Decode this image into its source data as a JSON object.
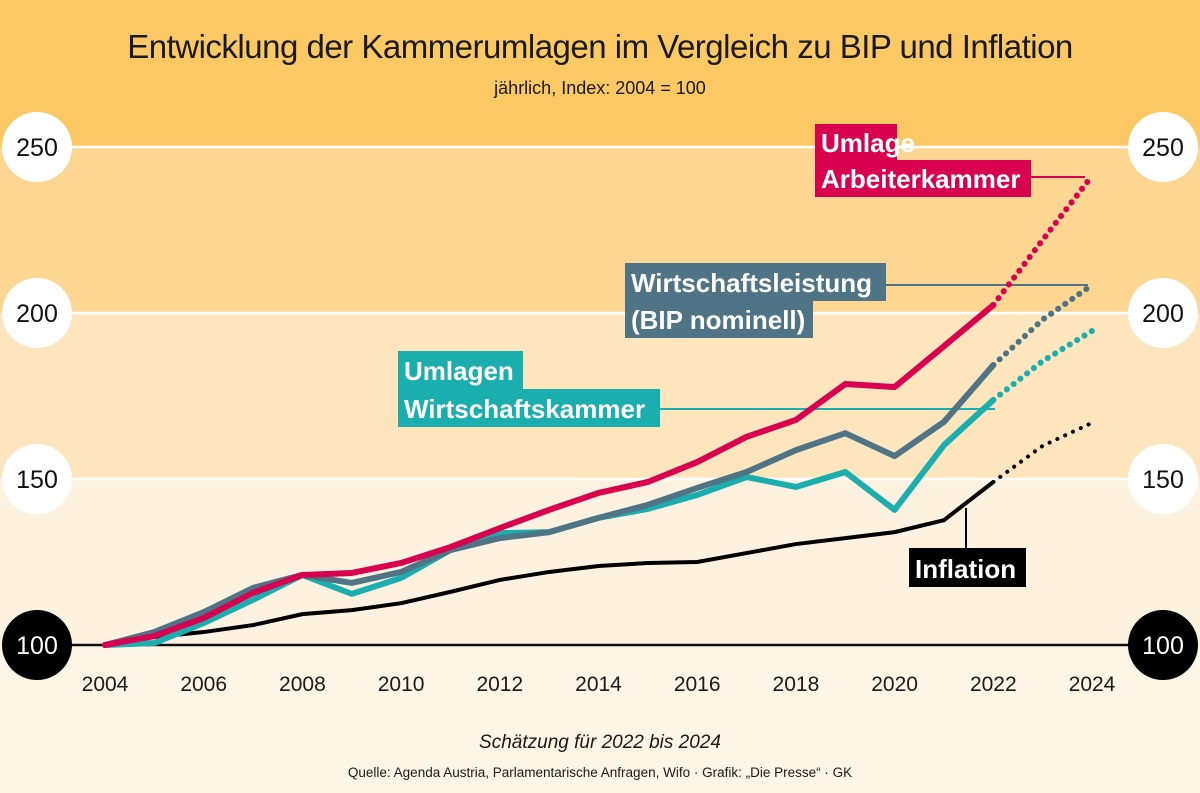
{
  "chart_data": {
    "type": "line",
    "title": "Entwicklung der Kammerumlagen im Vergleich zu BIP und Inflation",
    "subtitle": "jährlich, Index: 2004 = 100",
    "xlabel": "",
    "ylabel": "",
    "x": [
      2004,
      2005,
      2006,
      2007,
      2008,
      2009,
      2010,
      2011,
      2012,
      2013,
      2014,
      2015,
      2016,
      2017,
      2018,
      2019,
      2020,
      2021,
      2022,
      2023,
      2024
    ],
    "x_ticks": [
      "2004",
      "2006",
      "2008",
      "2010",
      "2012",
      "2014",
      "2016",
      "2018",
      "2020",
      "2022",
      "2024"
    ],
    "x_tick_values": [
      2004,
      2006,
      2008,
      2010,
      2012,
      2014,
      2016,
      2018,
      2020,
      2022,
      2024
    ],
    "y_ticks": [
      "100",
      "150",
      "200",
      "250"
    ],
    "y_tick_values": [
      100,
      150,
      200,
      250
    ],
    "ylim": [
      100,
      250
    ],
    "xlim": [
      2004,
      2024
    ],
    "estimate_from": 2022,
    "grid": true,
    "series": [
      {
        "name": "Umlage Arbeiterkammer",
        "label_lines": [
          "Umlage",
          "Arbeiterkammer"
        ],
        "color": "#d90050",
        "values": [
          100,
          102.7,
          108.1,
          115.7,
          121.1,
          121.7,
          124.7,
          129.5,
          135.2,
          140.7,
          145.8,
          149.1,
          155.1,
          162.7,
          167.8,
          178.6,
          177.7,
          190.0,
          202.4,
          222.0,
          241.3
        ]
      },
      {
        "name": "Wirtschaftsleistung (BIP nominell)",
        "label_lines": [
          "Wirtschaftsleistung",
          "(BIP nominell)"
        ],
        "color": "#4f7485",
        "values": [
          100,
          103.9,
          109.9,
          117.2,
          121.1,
          118.7,
          122.0,
          128.6,
          132.2,
          134.0,
          138.3,
          142.2,
          147.3,
          152.1,
          158.7,
          163.8,
          156.9,
          167.2,
          184.3,
          198.0,
          208.4
        ]
      },
      {
        "name": "Umlagen Wirtschaftskammer",
        "label_lines": [
          "Umlagen",
          "Wirtschaftskammer"
        ],
        "color": "#1aaeae",
        "values": [
          100,
          100.6,
          106.6,
          113.6,
          121.1,
          115.4,
          120.2,
          128.6,
          133.7,
          134.0,
          138.3,
          141.0,
          145.2,
          150.6,
          147.6,
          152.1,
          140.7,
          160.2,
          173.8,
          185.5,
          194.6
        ]
      },
      {
        "name": "Inflation",
        "label_lines": [
          "Inflation"
        ],
        "color": "#000000",
        "values": [
          100,
          102.4,
          103.9,
          106.0,
          109.3,
          110.5,
          112.6,
          116.0,
          119.6,
          122.0,
          123.8,
          124.7,
          125.0,
          127.7,
          130.4,
          132.2,
          134.0,
          137.6,
          149.1,
          160.0,
          166.9
        ]
      }
    ],
    "note": "Schätzung für 2022 bis 2024",
    "source": "Quelle: Agenda Austria, Parlamentarische Anfragen, Wifo · Grafik: „Die Presse“ · GK"
  },
  "colors": {
    "band_top": "#fcc864",
    "band_200_250": "#fdd692",
    "band_150_200": "#fde6bd",
    "band_100_150": "#fdf2e0",
    "band_bottom": "#fdf6e6"
  }
}
